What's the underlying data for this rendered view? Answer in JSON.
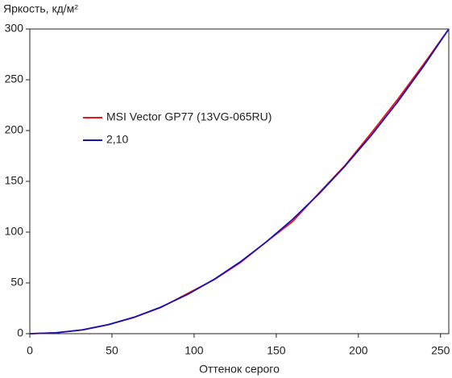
{
  "chart_data": {
    "type": "line",
    "y_label": "Яркость, кд/м²",
    "x_label": "Оттенок серого",
    "x": [
      0,
      16,
      32,
      48,
      64,
      80,
      96,
      112,
      128,
      144,
      160,
      176,
      192,
      208,
      224,
      240,
      255
    ],
    "series": [
      {
        "name": "MSI Vector GP77 (13VG-065RU)",
        "color": "#e8141c",
        "values": [
          0,
          0.9,
          3.7,
          8.9,
          16.3,
          26.0,
          39.5,
          53.0,
          69.8,
          90.5,
          110.5,
          138.5,
          166,
          198,
          231,
          266,
          300
        ]
      },
      {
        "name": "2,10",
        "color": "#1414b4",
        "values": [
          0,
          0.9,
          3.8,
          9.0,
          16.5,
          26.3,
          38.6,
          53.3,
          70.6,
          90.4,
          112.7,
          137.7,
          165.3,
          195.6,
          228.5,
          264.2,
          300
        ]
      }
    ],
    "xlim": [
      0,
      255
    ],
    "ylim": [
      0,
      300
    ],
    "xticks": [
      0,
      50,
      100,
      150,
      200,
      250
    ],
    "yticks": [
      0,
      50,
      100,
      150,
      200,
      250,
      300
    ],
    "grid": false
  }
}
